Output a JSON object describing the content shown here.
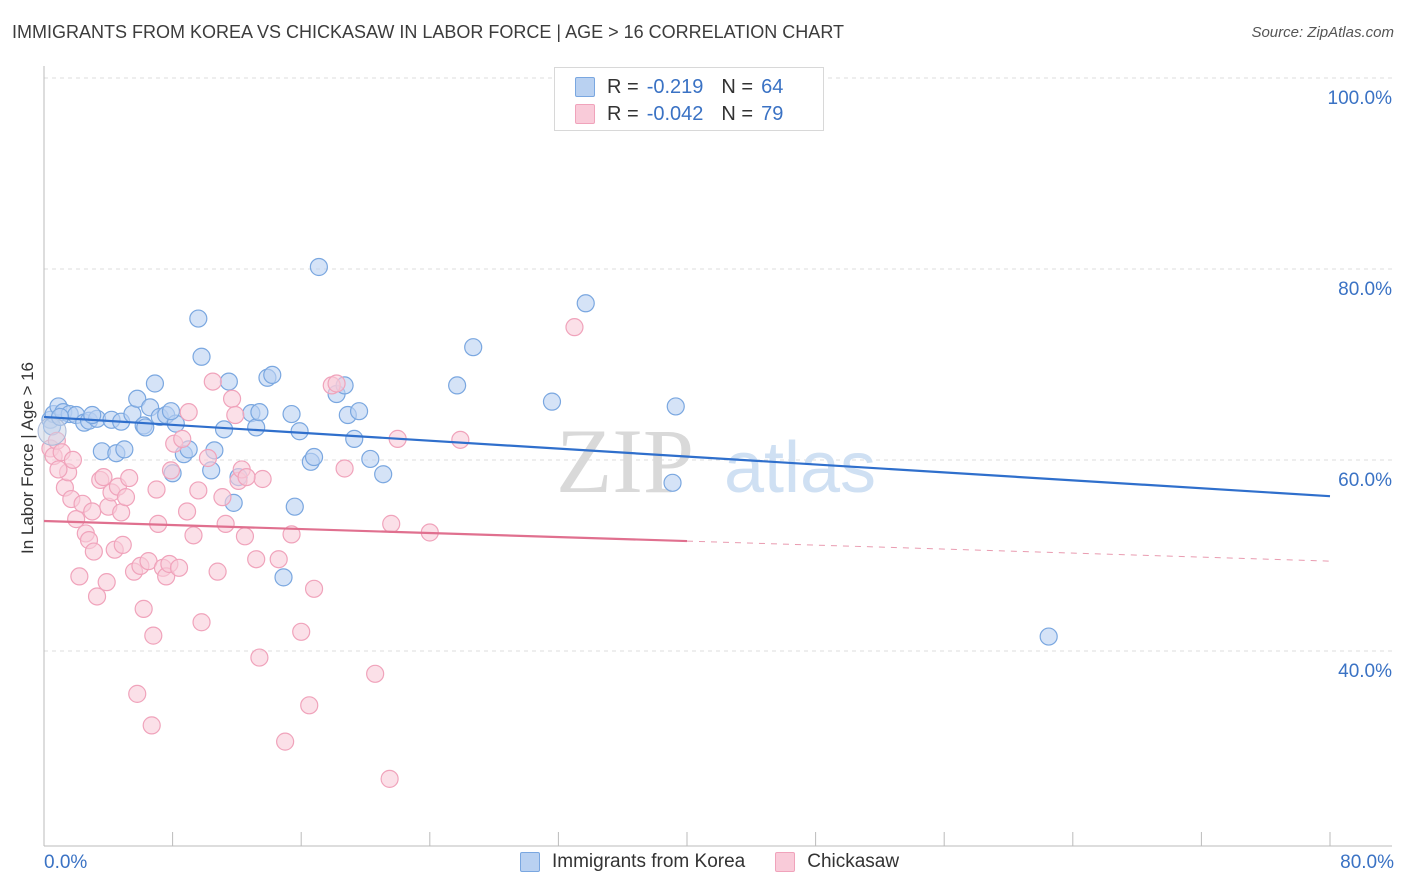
{
  "chart_data": {
    "type": "scatter",
    "title": "IMMIGRANTS FROM KOREA VS CHICKASAW IN LABOR FORCE | AGE > 16 CORRELATION CHART",
    "source": "Source: ZipAtlas.com",
    "xlabel": "",
    "ylabel": "In Labor Force | Age > 16",
    "xlim": [
      0,
      80
    ],
    "ylim": [
      20,
      102
    ],
    "x_tick_labels": {
      "min": "0.0%",
      "max": "80.0%"
    },
    "y_tick_labels": [
      "100.0%",
      "80.0%",
      "60.0%",
      "40.0%"
    ],
    "y_ticks": [
      100,
      80,
      60,
      40
    ],
    "grid": true,
    "watermark": {
      "zip": "ZIP",
      "atlas": "atlas"
    },
    "legend_position": "top-center",
    "series": [
      {
        "name": "Immigrants from Korea",
        "color": "#7aa7e0",
        "fill": "#b9d1f1",
        "line_color": "#2f6fcc",
        "r_label": "R =",
        "r_value": "-0.219",
        "n_label": "N =",
        "n_value": "64",
        "trend": {
          "x0": 0,
          "y0": 66.5,
          "x1": 80,
          "y1": 58.2
        },
        "points": [
          [
            0.4,
            66.2
          ],
          [
            0.6,
            66.8
          ],
          [
            0.9,
            67.6
          ],
          [
            1.2,
            67.0
          ],
          [
            1.6,
            66.8
          ],
          [
            2.0,
            66.7
          ],
          [
            2.5,
            65.9
          ],
          [
            2.8,
            66.1
          ],
          [
            3.3,
            66.3
          ],
          [
            3.6,
            62.9
          ],
          [
            4.2,
            66.2
          ],
          [
            4.5,
            62.7
          ],
          [
            4.8,
            66.0
          ],
          [
            5.0,
            63.1
          ],
          [
            5.5,
            66.8
          ],
          [
            5.8,
            68.4
          ],
          [
            6.2,
            65.6
          ],
          [
            6.3,
            65.4
          ],
          [
            6.6,
            67.5
          ],
          [
            6.9,
            70.0
          ],
          [
            7.2,
            66.5
          ],
          [
            7.6,
            66.7
          ],
          [
            8.0,
            60.6
          ],
          [
            8.2,
            65.8
          ],
          [
            8.7,
            62.6
          ],
          [
            9.0,
            63.1
          ],
          [
            9.6,
            76.8
          ],
          [
            9.8,
            72.8
          ],
          [
            10.4,
            60.9
          ],
          [
            10.6,
            63.0
          ],
          [
            11.2,
            65.2
          ],
          [
            11.5,
            70.2
          ],
          [
            11.8,
            57.5
          ],
          [
            12.1,
            60.2
          ],
          [
            12.9,
            66.9
          ],
          [
            13.2,
            65.4
          ],
          [
            13.4,
            67.0
          ],
          [
            13.9,
            70.6
          ],
          [
            14.2,
            70.9
          ],
          [
            14.9,
            49.7
          ],
          [
            15.4,
            66.8
          ],
          [
            15.6,
            57.1
          ],
          [
            15.9,
            65.0
          ],
          [
            16.6,
            61.8
          ],
          [
            16.8,
            62.3
          ],
          [
            17.1,
            82.2
          ],
          [
            18.2,
            68.9
          ],
          [
            18.7,
            69.8
          ],
          [
            18.9,
            66.7
          ],
          [
            19.3,
            64.2
          ],
          [
            19.6,
            67.1
          ],
          [
            20.3,
            62.1
          ],
          [
            21.1,
            60.5
          ],
          [
            25.7,
            69.8
          ],
          [
            26.7,
            73.8
          ],
          [
            31.6,
            68.1
          ],
          [
            33.7,
            78.4
          ],
          [
            39.1,
            59.6
          ],
          [
            39.3,
            67.6
          ],
          [
            62.5,
            43.5
          ],
          [
            0.5,
            65.5
          ],
          [
            1.0,
            66.5
          ],
          [
            3.0,
            66.7
          ],
          [
            7.9,
            67.1
          ]
        ]
      },
      {
        "name": "Chickasaw",
        "color": "#f0a3bb",
        "fill": "#f9cbd9",
        "line_color": "#e0708f",
        "r_label": "R =",
        "r_value": "-0.042",
        "n_label": "N =",
        "n_value": "79",
        "trend": {
          "x0": 0,
          "y0": 55.6,
          "x1": 40,
          "y1": 53.5
        },
        "trend_dashed": {
          "x0": 40,
          "y0": 53.5,
          "x1": 80,
          "y1": 51.4
        },
        "points": [
          [
            0.4,
            63.2
          ],
          [
            0.6,
            62.4
          ],
          [
            0.8,
            64.0
          ],
          [
            1.1,
            62.8
          ],
          [
            1.3,
            59.1
          ],
          [
            1.5,
            60.7
          ],
          [
            1.7,
            57.9
          ],
          [
            1.8,
            62.0
          ],
          [
            2.0,
            55.8
          ],
          [
            2.2,
            49.8
          ],
          [
            2.4,
            57.4
          ],
          [
            2.6,
            54.3
          ],
          [
            2.8,
            53.6
          ],
          [
            3.0,
            56.6
          ],
          [
            3.1,
            52.4
          ],
          [
            3.3,
            47.7
          ],
          [
            3.5,
            59.9
          ],
          [
            3.7,
            60.2
          ],
          [
            3.9,
            49.2
          ],
          [
            4.0,
            57.1
          ],
          [
            4.2,
            58.6
          ],
          [
            4.4,
            52.6
          ],
          [
            4.6,
            59.2
          ],
          [
            4.8,
            56.5
          ],
          [
            4.9,
            53.1
          ],
          [
            5.1,
            58.1
          ],
          [
            5.3,
            60.1
          ],
          [
            5.6,
            50.3
          ],
          [
            5.8,
            37.5
          ],
          [
            6.0,
            50.9
          ],
          [
            6.2,
            46.4
          ],
          [
            6.5,
            51.4
          ],
          [
            6.7,
            34.2
          ],
          [
            6.8,
            43.6
          ],
          [
            7.0,
            58.9
          ],
          [
            7.1,
            55.3
          ],
          [
            7.4,
            50.7
          ],
          [
            7.6,
            49.8
          ],
          [
            7.8,
            51.1
          ],
          [
            7.9,
            60.9
          ],
          [
            8.1,
            63.7
          ],
          [
            8.4,
            50.7
          ],
          [
            8.6,
            64.2
          ],
          [
            8.9,
            56.6
          ],
          [
            9.0,
            67.0
          ],
          [
            9.3,
            54.1
          ],
          [
            9.6,
            58.8
          ],
          [
            9.8,
            45.0
          ],
          [
            10.2,
            62.2
          ],
          [
            10.5,
            70.2
          ],
          [
            10.8,
            50.3
          ],
          [
            11.1,
            58.1
          ],
          [
            11.3,
            55.3
          ],
          [
            11.7,
            68.4
          ],
          [
            11.9,
            66.7
          ],
          [
            12.1,
            59.8
          ],
          [
            12.3,
            61.0
          ],
          [
            12.5,
            54.0
          ],
          [
            13.2,
            51.6
          ],
          [
            13.4,
            41.3
          ],
          [
            13.6,
            60.0
          ],
          [
            14.6,
            51.6
          ],
          [
            15.0,
            32.5
          ],
          [
            15.4,
            54.2
          ],
          [
            16.0,
            44.0
          ],
          [
            16.5,
            36.3
          ],
          [
            16.8,
            48.5
          ],
          [
            17.9,
            69.8
          ],
          [
            18.2,
            70.0
          ],
          [
            18.7,
            61.1
          ],
          [
            20.6,
            39.6
          ],
          [
            21.5,
            28.6
          ],
          [
            21.6,
            55.3
          ],
          [
            22.0,
            64.2
          ],
          [
            24.0,
            54.4
          ],
          [
            25.9,
            64.1
          ],
          [
            33.0,
            75.9
          ],
          [
            0.9,
            61.0
          ],
          [
            12.6,
            60.2
          ]
        ]
      }
    ]
  }
}
